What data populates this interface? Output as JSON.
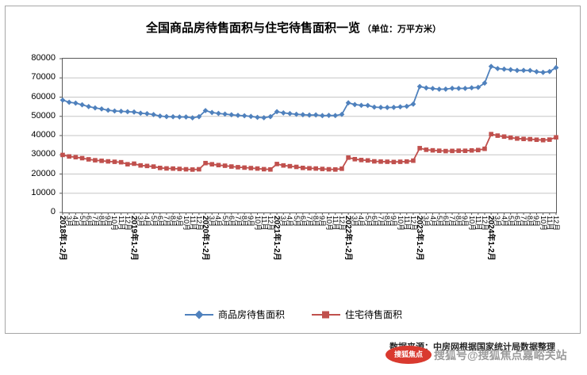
{
  "title": {
    "main": "全国商品房待售面积与住宅待售面积一览",
    "unit": "（单位：万平方米）"
  },
  "source": "数据来源：中房网根据国家统计局数据整理",
  "watermark": {
    "badge": "搜狐焦点",
    "text": "搜狐号@搜狐焦点嘉峪关站"
  },
  "chart_data": {
    "type": "line",
    "title": "全国商品房待售面积与住宅待售面积一览（单位：万平方米）",
    "xlabel": "",
    "ylabel": "万平方米",
    "ylim": [
      0,
      80000
    ],
    "y_ticks": [
      0,
      10000,
      20000,
      30000,
      40000,
      50000,
      60000,
      70000,
      80000
    ],
    "grid": true,
    "legend_position": "bottom",
    "categories": [
      "2018年1-2月",
      "3月",
      "4月",
      "5月",
      "6月",
      "7月",
      "8月",
      "9月",
      "10月",
      "11月",
      "12月",
      "2019年1-2月",
      "3月",
      "4月",
      "5月",
      "6月",
      "7月",
      "8月",
      "9月",
      "10月",
      "11月",
      "12月",
      "2020年1-2月",
      "3月",
      "4月",
      "5月",
      "6月",
      "7月",
      "8月",
      "9月",
      "10月",
      "11月",
      "12月",
      "2021年1-2月",
      "3月",
      "4月",
      "5月",
      "6月",
      "7月",
      "8月",
      "9月",
      "10月",
      "11月",
      "12月",
      "2022年1-2月",
      "3月",
      "4月",
      "5月",
      "6月",
      "7月",
      "8月",
      "9月",
      "10月",
      "11月",
      "12月",
      "2023年1-2月",
      "3月",
      "4月",
      "5月",
      "6月",
      "7月",
      "8月",
      "9月",
      "10月",
      "11月",
      "12月",
      "2024年1-2月",
      "3月",
      "4月",
      "5月",
      "6月",
      "7月",
      "8月",
      "9月",
      "10月",
      "11月",
      "12月"
    ],
    "series": [
      {
        "name": "商品房待售面积",
        "color": "#4F81BD",
        "marker": "diamond",
        "values": [
          58468,
          57329,
          56890,
          56010,
          55083,
          54383,
          53873,
          53191,
          52789,
          52627,
          52414,
          52251,
          51646,
          51380,
          50928,
          50162,
          49876,
          49784,
          49698,
          49666,
          49221,
          49821,
          52985,
          51987,
          51521,
          51184,
          50818,
          50526,
          50323,
          49973,
          49492,
          49287,
          49850,
          52425,
          51779,
          51433,
          51078,
          50855,
          50645,
          50738,
          50386,
          50494,
          50423,
          51023,
          57026,
          56113,
          55735,
          55673,
          54784,
          54655,
          54605,
          54667,
          54937,
          55203,
          56366,
          65528,
          64770,
          64487,
          64120,
          64159,
          64564,
          64524,
          64537,
          64835,
          65074,
          67295,
          75969,
          74833,
          74553,
          74256,
          73894,
          73926,
          73863,
          73213,
          72867,
          73286,
          75327
        ]
      },
      {
        "name": "住宅待售面积",
        "color": "#C0504D",
        "marker": "square",
        "values": [
          29925,
          29140,
          28760,
          28260,
          27636,
          27164,
          26869,
          26575,
          26360,
          26130,
          25091,
          25379,
          24474,
          24192,
          23874,
          23175,
          22913,
          22836,
          22660,
          22463,
          22320,
          22473,
          25681,
          25077,
          24637,
          24319,
          23899,
          23544,
          23332,
          23086,
          22851,
          22514,
          22379,
          25211,
          24467,
          24070,
          23704,
          23185,
          22997,
          22858,
          22644,
          22462,
          22351,
          22761,
          28534,
          27726,
          27283,
          27071,
          26598,
          26467,
          26387,
          26261,
          26374,
          26489,
          26947,
          33452,
          32628,
          32322,
          32118,
          31944,
          32018,
          32119,
          32091,
          32276,
          32456,
          33119,
          40757,
          39968,
          39466,
          38929,
          38457,
          38247,
          38124,
          37837,
          37634,
          37891,
          39088
        ]
      }
    ]
  }
}
